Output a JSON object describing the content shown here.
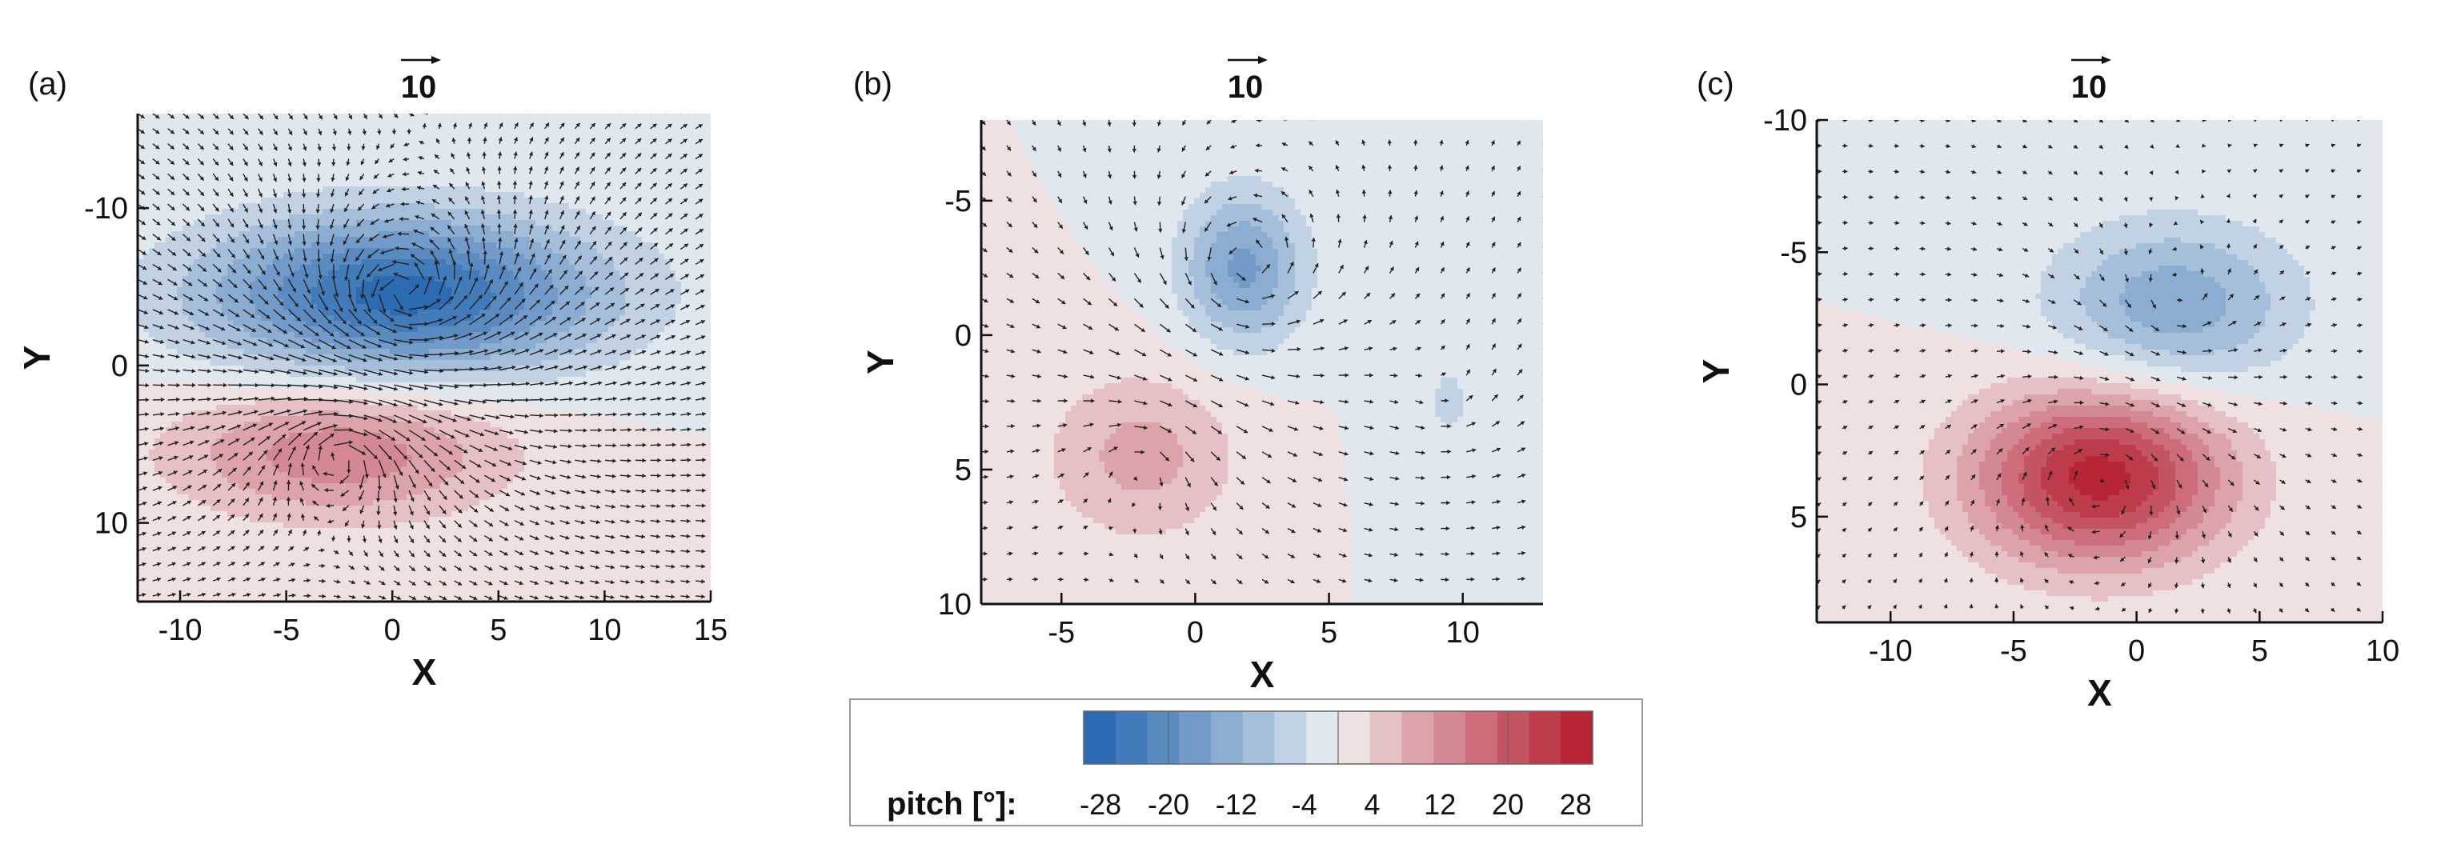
{
  "chart_data": [
    {
      "type": "vector-contour",
      "panel": "(a)",
      "xlabel": "X",
      "ylabel": "Y",
      "xlim": [
        -12,
        15
      ],
      "ylim": [
        -16,
        15
      ],
      "y_inverted": true,
      "xticks": [
        -10,
        -5,
        0,
        5,
        10,
        15
      ],
      "yticks": [
        -10,
        0,
        10
      ],
      "reference_vector_label": "10",
      "vortices": [
        {
          "x": 0.5,
          "y": -4.5,
          "pitch": -28,
          "sx": 6.5,
          "sy": 3.5
        },
        {
          "x": -2.5,
          "y": 5.5,
          "pitch": 14,
          "sx": 5.5,
          "sy": 3.0
        }
      ]
    },
    {
      "type": "vector-contour",
      "panel": "(b)",
      "xlabel": "X",
      "ylabel": "Y",
      "xlim": [
        -8,
        13
      ],
      "ylim": [
        -8,
        10
      ],
      "y_inverted": true,
      "xticks": [
        -5,
        0,
        5,
        10
      ],
      "yticks": [
        -5,
        0,
        5,
        10
      ],
      "reference_vector_label": "10",
      "vortices": [
        {
          "x": 1.8,
          "y": -2.5,
          "pitch": -16,
          "sx": 1.6,
          "sy": 2.0
        },
        {
          "x": -2.0,
          "y": 4.5,
          "pitch": 9,
          "sx": 2.5,
          "sy": 2.2
        },
        {
          "x": 9.5,
          "y": 2.5,
          "pitch": -4,
          "sx": 1.5,
          "sy": 2.5
        }
      ]
    },
    {
      "type": "vector-contour",
      "panel": "(c)",
      "xlabel": "X",
      "ylabel": "Y",
      "xlim": [
        -13,
        10
      ],
      "ylim": [
        -10,
        9
      ],
      "y_inverted": true,
      "xticks": [
        -10,
        -5,
        0,
        5,
        10
      ],
      "yticks": [
        -10,
        -5,
        0,
        5
      ],
      "reference_vector_label": "10",
      "vortices": [
        {
          "x": 1.5,
          "y": -3.0,
          "pitch": -14,
          "sx": 3.5,
          "sy": 2.2
        },
        {
          "x": -1.5,
          "y": 3.5,
          "pitch": 28,
          "sx": 3.6,
          "sy": 2.3
        }
      ]
    }
  ],
  "colorbar": {
    "title": "pitch [°]:",
    "range": [
      -30,
      30
    ],
    "tick_values": [
      -28,
      -20,
      -12,
      -4,
      4,
      12,
      20,
      28
    ],
    "tick_labels": [
      "-28",
      "-20",
      "-12",
      "-4",
      "4",
      "12",
      "20",
      "28"
    ],
    "levels": 16,
    "colors": {
      "negative_max": "#1f63ad",
      "neutral": "#f5f5f5",
      "positive_max": "#b2182b"
    }
  }
}
